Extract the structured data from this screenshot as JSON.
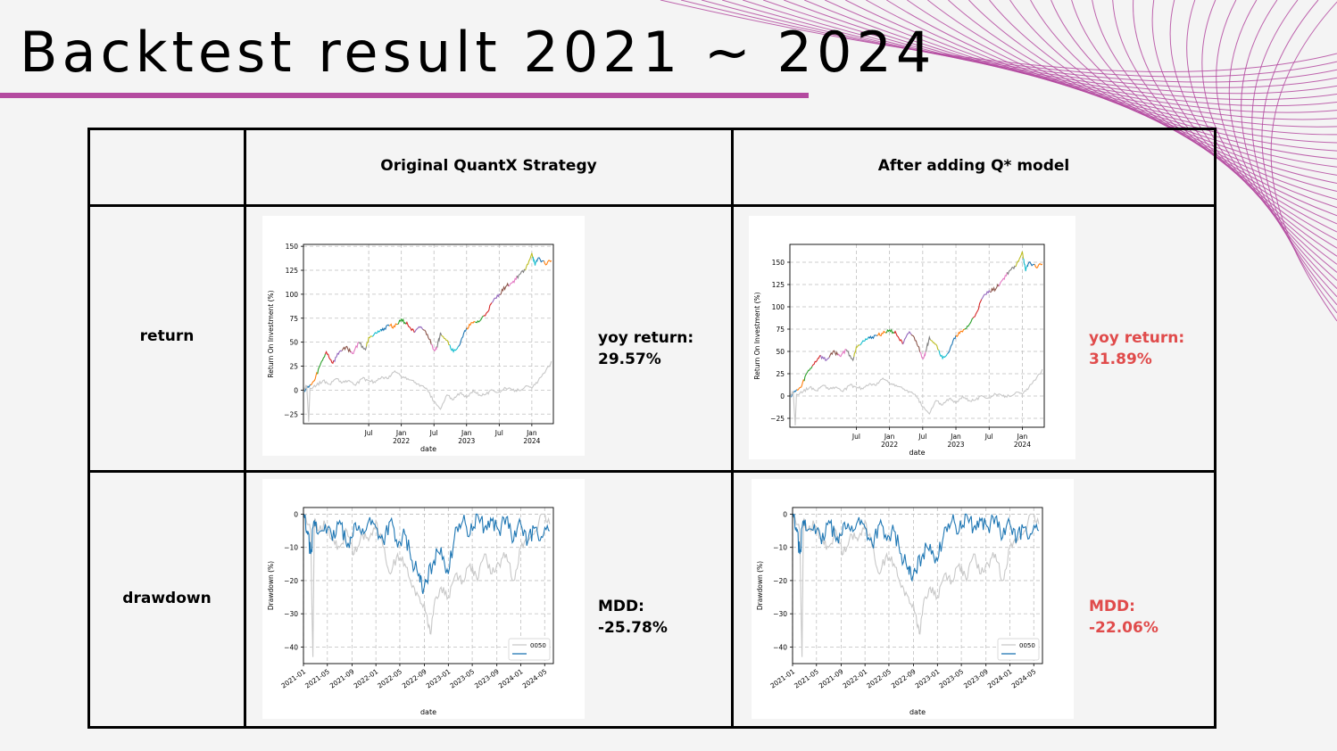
{
  "title": "Backtest result 2021 ~ 2024",
  "colors": {
    "accent": "#b44aa0",
    "highlight": "#e04b4b",
    "drawdown_line": "#1f77b4",
    "benchmark_line": "#c8c8c8"
  },
  "table": {
    "columns": [
      "Original QuantX Strategy",
      "After adding Q* model"
    ],
    "rows": [
      "return",
      "drawdown"
    ],
    "metrics": {
      "original_return": {
        "label": "yoy return:",
        "value": "29.57%"
      },
      "qstar_return": {
        "label": "yoy return:",
        "value": "31.89%"
      },
      "original_mdd": {
        "label": "MDD:",
        "value": "-25.78%"
      },
      "qstar_mdd": {
        "label": "MDD:",
        "value": "-22.06%"
      }
    }
  },
  "chart_data": [
    {
      "id": "original_return",
      "type": "line",
      "xlabel": "date",
      "ylabel": "Return On Investment (%)",
      "ylim": [
        -35,
        152
      ],
      "yticks": [
        -25,
        0,
        25,
        50,
        75,
        100,
        125,
        150
      ],
      "xticks": [
        {
          "pos": 0.5,
          "label": "Jul"
        },
        {
          "pos": 1.0,
          "label": "Jan",
          "sub": "2022"
        },
        {
          "pos": 1.5,
          "label": "Jul"
        },
        {
          "pos": 2.0,
          "label": "Jan",
          "sub": "2023"
        },
        {
          "pos": 2.5,
          "label": "Jul"
        },
        {
          "pos": 3.0,
          "label": "Jan",
          "sub": "2024"
        }
      ],
      "xlim": [
        -0.5,
        3.33
      ],
      "series": [
        {
          "style": "multicolor",
          "x": [
            -0.5,
            -0.42,
            -0.33,
            -0.25,
            -0.15,
            -0.05,
            0.05,
            0.15,
            0.25,
            0.35,
            0.45,
            0.5,
            0.6,
            0.7,
            0.8,
            0.9,
            1.0,
            1.1,
            1.2,
            1.3,
            1.4,
            1.5,
            1.55,
            1.6,
            1.7,
            1.8,
            1.9,
            2.0,
            2.1,
            2.2,
            2.3,
            2.4,
            2.5,
            2.6,
            2.7,
            2.8,
            2.9,
            3.0,
            3.05,
            3.1,
            3.2,
            3.3
          ],
          "y": [
            0,
            3,
            10,
            25,
            40,
            28,
            40,
            45,
            38,
            50,
            42,
            55,
            60,
            62,
            68,
            66,
            74,
            68,
            60,
            66,
            58,
            42,
            45,
            60,
            52,
            40,
            48,
            65,
            70,
            72,
            80,
            92,
            100,
            108,
            112,
            120,
            125,
            143,
            130,
            138,
            132,
            135
          ]
        },
        {
          "style": "benchmark",
          "x": [
            -0.5,
            -0.45,
            -0.42,
            -0.4,
            -0.3,
            -0.2,
            -0.1,
            0.0,
            0.1,
            0.2,
            0.3,
            0.4,
            0.5,
            0.6,
            0.7,
            0.8,
            0.9,
            1.0,
            1.1,
            1.2,
            1.3,
            1.4,
            1.5,
            1.6,
            1.7,
            1.8,
            1.9,
            2.0,
            2.1,
            2.2,
            2.3,
            2.4,
            2.5,
            2.6,
            2.7,
            2.8,
            2.9,
            3.0,
            3.1,
            3.2,
            3.3
          ],
          "y": [
            0,
            5,
            -33,
            2,
            5,
            10,
            6,
            12,
            8,
            10,
            5,
            12,
            10,
            8,
            14,
            12,
            20,
            14,
            12,
            8,
            5,
            0,
            -12,
            -20,
            -5,
            -10,
            -3,
            -8,
            0,
            -5,
            -4,
            0,
            -2,
            2,
            0,
            0,
            4,
            2,
            10,
            18,
            30
          ]
        }
      ]
    },
    {
      "id": "qstar_return",
      "type": "line",
      "xlabel": "date",
      "ylabel": "Return On Investment (%)",
      "ylim": [
        -35,
        170
      ],
      "yticks": [
        -25,
        0,
        25,
        50,
        75,
        100,
        125,
        150
      ],
      "xticks": [
        {
          "pos": 0.5,
          "label": "Jul"
        },
        {
          "pos": 1.0,
          "label": "Jan",
          "sub": "2022"
        },
        {
          "pos": 1.5,
          "label": "Jul"
        },
        {
          "pos": 2.0,
          "label": "Jan",
          "sub": "2023"
        },
        {
          "pos": 2.5,
          "label": "Jul"
        },
        {
          "pos": 3.0,
          "label": "Jan",
          "sub": "2024"
        }
      ],
      "xlim": [
        -0.5,
        3.33
      ],
      "series": [
        {
          "style": "multicolor",
          "x": [
            -0.5,
            -0.42,
            -0.33,
            -0.25,
            -0.15,
            -0.05,
            0.05,
            0.15,
            0.25,
            0.35,
            0.45,
            0.5,
            0.6,
            0.7,
            0.8,
            0.9,
            1.0,
            1.1,
            1.2,
            1.3,
            1.4,
            1.5,
            1.55,
            1.6,
            1.7,
            1.8,
            1.9,
            2.0,
            2.1,
            2.2,
            2.3,
            2.4,
            2.5,
            2.6,
            2.7,
            2.8,
            2.9,
            3.0,
            3.05,
            3.1,
            3.2,
            3.3
          ],
          "y": [
            0,
            5,
            10,
            25,
            35,
            45,
            40,
            50,
            45,
            52,
            40,
            55,
            62,
            65,
            68,
            70,
            74,
            70,
            58,
            72,
            62,
            42,
            50,
            66,
            58,
            42,
            50,
            68,
            72,
            80,
            92,
            110,
            118,
            120,
            130,
            140,
            145,
            162,
            140,
            150,
            145,
            148
          ]
        },
        {
          "style": "benchmark",
          "x": [
            -0.5,
            -0.45,
            -0.42,
            -0.4,
            -0.3,
            -0.2,
            -0.1,
            0.0,
            0.1,
            0.2,
            0.3,
            0.4,
            0.5,
            0.6,
            0.7,
            0.8,
            0.9,
            1.0,
            1.1,
            1.2,
            1.3,
            1.4,
            1.5,
            1.6,
            1.7,
            1.8,
            1.9,
            2.0,
            2.1,
            2.2,
            2.3,
            2.4,
            2.5,
            2.6,
            2.7,
            2.8,
            2.9,
            3.0,
            3.1,
            3.2,
            3.3
          ],
          "y": [
            0,
            5,
            -33,
            2,
            5,
            10,
            6,
            12,
            8,
            10,
            5,
            12,
            10,
            8,
            14,
            12,
            20,
            14,
            12,
            8,
            5,
            0,
            -12,
            -20,
            -5,
            -10,
            -3,
            -8,
            0,
            -5,
            -4,
            0,
            -2,
            2,
            0,
            0,
            4,
            2,
            10,
            18,
            30
          ]
        }
      ]
    },
    {
      "id": "original_drawdown",
      "type": "line",
      "xlabel": "date",
      "ylabel": "Drawdown (%)",
      "ylim": [
        -45,
        2
      ],
      "yticks": [
        0,
        -10,
        -20,
        -30,
        -40
      ],
      "xlim": [
        0,
        3.45
      ],
      "xticks": [
        {
          "pos": 0,
          "label": "2021-01"
        },
        {
          "pos": 0.33,
          "label": "2021-05"
        },
        {
          "pos": 0.67,
          "label": "2021-09"
        },
        {
          "pos": 1.0,
          "label": "2022-01"
        },
        {
          "pos": 1.33,
          "label": "2022-05"
        },
        {
          "pos": 1.67,
          "label": "2022-09"
        },
        {
          "pos": 2.0,
          "label": "2023-01"
        },
        {
          "pos": 2.33,
          "label": "2023-05"
        },
        {
          "pos": 2.67,
          "label": "2023-09"
        },
        {
          "pos": 3.0,
          "label": "2024-01"
        },
        {
          "pos": 3.33,
          "label": "2024-05"
        }
      ],
      "legend": {
        "position": "lower right",
        "entries": [
          "0050",
          ""
        ]
      },
      "series": [
        {
          "name": "0050",
          "style": "benchmark",
          "x": [
            0,
            0.1,
            0.13,
            0.15,
            0.2,
            0.3,
            0.4,
            0.5,
            0.6,
            0.7,
            0.8,
            0.9,
            1.0,
            1.1,
            1.2,
            1.3,
            1.4,
            1.5,
            1.6,
            1.7,
            1.75,
            1.8,
            1.9,
            2.0,
            2.1,
            2.2,
            2.3,
            2.4,
            2.5,
            2.6,
            2.7,
            2.8,
            2.9,
            3.0,
            3.1,
            3.2,
            3.3,
            3.4
          ],
          "y": [
            0,
            -5,
            -43,
            -2,
            -5,
            -3,
            -8,
            -10,
            -5,
            -12,
            -6,
            -8,
            -2,
            -10,
            -18,
            -12,
            -15,
            -22,
            -25,
            -30,
            -36,
            -28,
            -22,
            -25,
            -18,
            -20,
            -15,
            -20,
            -12,
            -18,
            -15,
            -12,
            -20,
            -10,
            -8,
            -5,
            0,
            -3
          ]
        },
        {
          "style": "drawdown",
          "x": [
            0,
            0.05,
            0.1,
            0.15,
            0.2,
            0.3,
            0.4,
            0.5,
            0.6,
            0.7,
            0.8,
            0.9,
            1.0,
            1.1,
            1.2,
            1.3,
            1.4,
            1.5,
            1.6,
            1.65,
            1.7,
            1.8,
            1.9,
            2.0,
            2.1,
            2.2,
            2.3,
            2.4,
            2.5,
            2.6,
            2.7,
            2.8,
            2.9,
            3.0,
            3.1,
            3.2,
            3.3,
            3.4
          ],
          "y": [
            0,
            -5,
            -12,
            -2,
            -6,
            -3,
            -8,
            -2,
            -10,
            -3,
            -6,
            -2,
            -4,
            -8,
            -2,
            -10,
            -6,
            -14,
            -18,
            -24,
            -20,
            -14,
            -10,
            -18,
            -4,
            -2,
            -6,
            0,
            -4,
            -2,
            -5,
            -1,
            -8,
            -3,
            -8,
            -4,
            -7,
            -5
          ]
        }
      ]
    },
    {
      "id": "qstar_drawdown",
      "type": "line",
      "xlabel": "date",
      "ylabel": "Drawdown (%)",
      "ylim": [
        -45,
        2
      ],
      "yticks": [
        0,
        -10,
        -20,
        -30,
        -40
      ],
      "xlim": [
        0,
        3.45
      ],
      "xticks": [
        {
          "pos": 0,
          "label": "2021-01"
        },
        {
          "pos": 0.33,
          "label": "2021-05"
        },
        {
          "pos": 0.67,
          "label": "2021-09"
        },
        {
          "pos": 1.0,
          "label": "2022-01"
        },
        {
          "pos": 1.33,
          "label": "2022-05"
        },
        {
          "pos": 1.67,
          "label": "2022-09"
        },
        {
          "pos": 2.0,
          "label": "2023-01"
        },
        {
          "pos": 2.33,
          "label": "2023-05"
        },
        {
          "pos": 2.67,
          "label": "2023-09"
        },
        {
          "pos": 3.0,
          "label": "2024-01"
        },
        {
          "pos": 3.33,
          "label": "2024-05"
        }
      ],
      "legend": {
        "position": "lower right",
        "entries": [
          "0050",
          ""
        ]
      },
      "series": [
        {
          "name": "0050",
          "style": "benchmark",
          "x": [
            0,
            0.1,
            0.13,
            0.15,
            0.2,
            0.3,
            0.4,
            0.5,
            0.6,
            0.7,
            0.8,
            0.9,
            1.0,
            1.1,
            1.2,
            1.3,
            1.4,
            1.5,
            1.6,
            1.7,
            1.75,
            1.8,
            1.9,
            2.0,
            2.1,
            2.2,
            2.3,
            2.4,
            2.5,
            2.6,
            2.7,
            2.8,
            2.9,
            3.0,
            3.1,
            3.2,
            3.3,
            3.4
          ],
          "y": [
            0,
            -5,
            -43,
            -2,
            -5,
            -3,
            -8,
            -10,
            -5,
            -12,
            -6,
            -8,
            -2,
            -10,
            -18,
            -12,
            -15,
            -22,
            -25,
            -30,
            -36,
            -28,
            -22,
            -25,
            -18,
            -20,
            -15,
            -20,
            -12,
            -18,
            -15,
            -12,
            -20,
            -10,
            -8,
            -5,
            0,
            -3
          ]
        },
        {
          "style": "drawdown",
          "x": [
            0,
            0.05,
            0.1,
            0.15,
            0.2,
            0.3,
            0.4,
            0.5,
            0.6,
            0.7,
            0.8,
            0.9,
            1.0,
            1.1,
            1.2,
            1.3,
            1.4,
            1.5,
            1.6,
            1.65,
            1.7,
            1.8,
            1.9,
            2.0,
            2.1,
            2.2,
            2.3,
            2.4,
            2.5,
            2.6,
            2.7,
            2.8,
            2.9,
            3.0,
            3.1,
            3.2,
            3.3,
            3.4
          ],
          "y": [
            0,
            -4,
            -12,
            -2,
            -5,
            -3,
            -9,
            -2,
            -8,
            -3,
            -5,
            -2,
            -4,
            -9,
            -3,
            -8,
            -5,
            -12,
            -16,
            -20,
            -17,
            -12,
            -9,
            -14,
            -4,
            -2,
            -5,
            0,
            -4,
            -2,
            -4,
            -1,
            -7,
            -3,
            -7,
            -4,
            -6,
            -5
          ]
        }
      ]
    }
  ]
}
